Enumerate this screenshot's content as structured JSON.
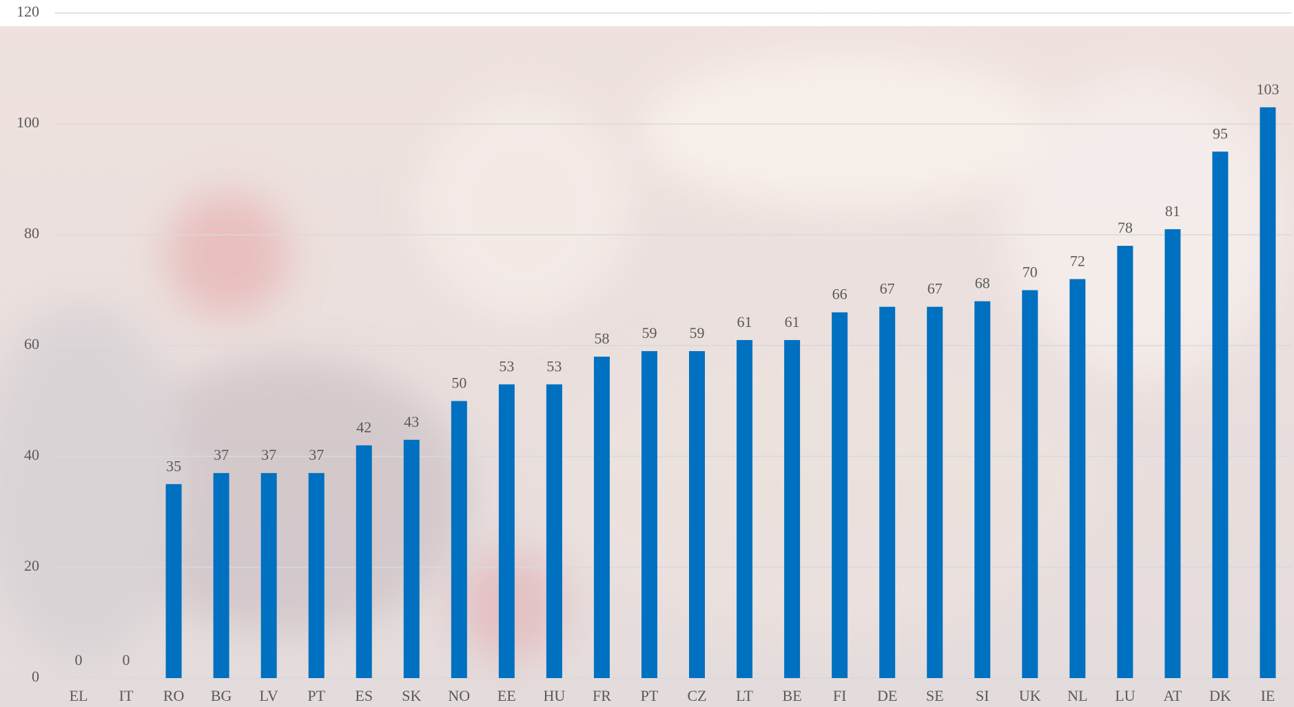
{
  "chart_data": {
    "type": "bar",
    "categories": [
      "EL",
      "IT",
      "RO",
      "BG",
      "LV",
      "PT",
      "ES",
      "SK",
      "NO",
      "EE",
      "HU",
      "FR",
      "PT",
      "CZ",
      "LT",
      "BE",
      "FI",
      "DE",
      "SE",
      "SI",
      "UK",
      "NL",
      "LU",
      "AT",
      "DK",
      "IE"
    ],
    "values": [
      0,
      0,
      35,
      37,
      37,
      37,
      42,
      43,
      50,
      53,
      53,
      58,
      59,
      59,
      61,
      61,
      66,
      67,
      67,
      68,
      70,
      72,
      78,
      81,
      95,
      103
    ],
    "color": "#0070c0",
    "ylim": [
      0,
      120
    ],
    "yticks": [
      0,
      20,
      40,
      60,
      80,
      100,
      120
    ],
    "grid": true
  }
}
